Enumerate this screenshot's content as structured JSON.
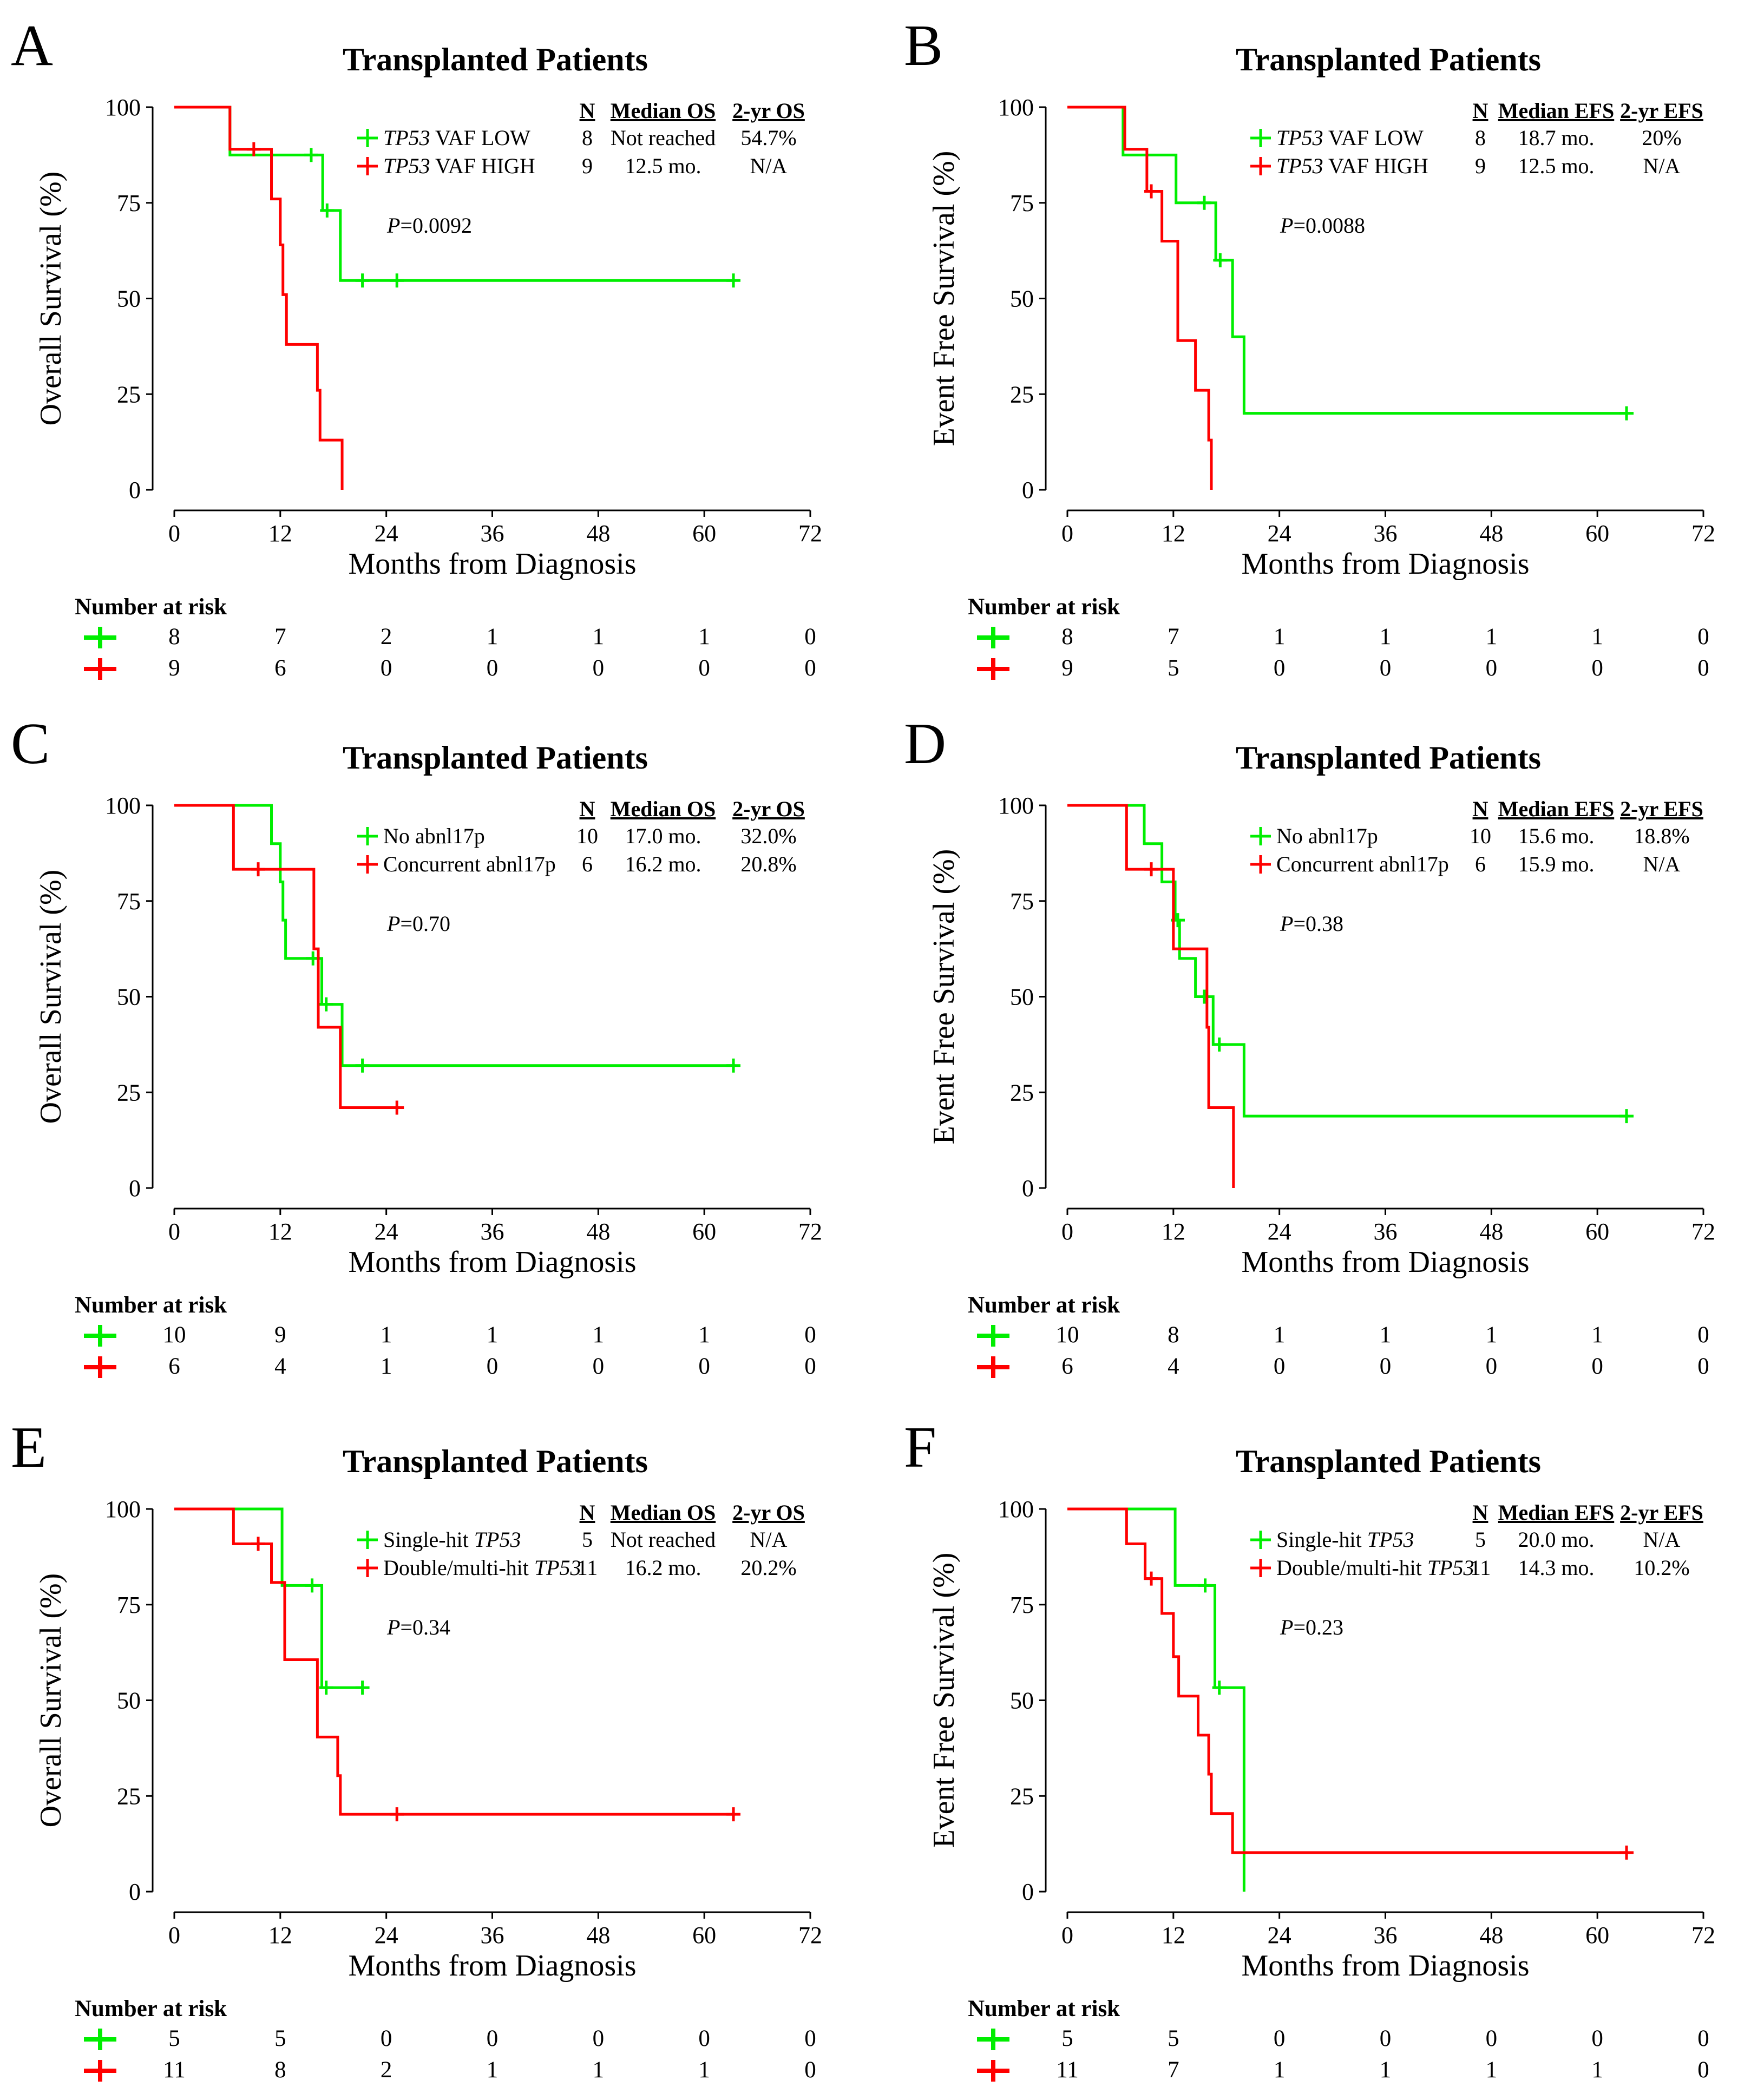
{
  "figure": {
    "number_at_risk_label": "Number at risk",
    "p_prefix": "P",
    "colors": {
      "green": "#00ee00",
      "red": "#ff0000"
    }
  },
  "chart_data": [
    {
      "panel": "A",
      "type": "line",
      "title": "Transplanted Patients",
      "xlabel": "Months from Diagnosis",
      "ylabel": "Overall Survival (%)",
      "xlim": [
        0,
        72
      ],
      "ylim": [
        0,
        100
      ],
      "xticks": [
        0,
        12,
        24,
        36,
        48,
        60,
        72
      ],
      "yticks": [
        0,
        25,
        50,
        75,
        100
      ],
      "table_headers": [
        "N",
        "Median OS",
        "2-yr OS"
      ],
      "p_value": "=0.0092",
      "series": [
        {
          "name": "TP53 VAF LOW",
          "name_italic": "TP53",
          "name_rest": " VAF LOW",
          "color": "green",
          "stats": [
            "8",
            "Not reached",
            "54.7%"
          ],
          "steps": [
            [
              0,
              100
            ],
            [
              6.3,
              87.5
            ],
            [
              16.8,
              73
            ],
            [
              18.8,
              54.7
            ],
            [
              63.5,
              54.7
            ]
          ],
          "censored": [
            [
              15.5,
              87.5
            ],
            [
              17.3,
              73
            ],
            [
              21.3,
              54.7
            ],
            [
              25.2,
              54.7
            ],
            [
              63.3,
              54.7
            ]
          ],
          "risk": [
            8,
            7,
            2,
            1,
            1,
            1,
            0
          ]
        },
        {
          "name": "TP53 VAF HIGH",
          "name_italic": "TP53",
          "name_rest": " VAF HIGH",
          "color": "red",
          "stats": [
            "9",
            "12.5 mo.",
            "N/A"
          ],
          "steps": [
            [
              0,
              100
            ],
            [
              6.3,
              89
            ],
            [
              11,
              76
            ],
            [
              12,
              64
            ],
            [
              12.3,
              51
            ],
            [
              12.7,
              38
            ],
            [
              16.2,
              26
            ],
            [
              16.5,
              13
            ],
            [
              19,
              0
            ]
          ],
          "censored": [
            [
              9,
              89
            ]
          ],
          "risk": [
            9,
            6,
            0,
            0,
            0,
            0,
            0
          ]
        }
      ]
    },
    {
      "panel": "B",
      "type": "line",
      "title": "Transplanted Patients",
      "xlabel": "Months from Diagnosis",
      "ylabel": "Event Free Survival (%)",
      "xlim": [
        0,
        72
      ],
      "ylim": [
        0,
        100
      ],
      "xticks": [
        0,
        12,
        24,
        36,
        48,
        60,
        72
      ],
      "yticks": [
        0,
        25,
        50,
        75,
        100
      ],
      "table_headers": [
        "N",
        "Median EFS",
        "2-yr EFS"
      ],
      "p_value": "=0.0088",
      "series": [
        {
          "name": "TP53 VAF LOW",
          "name_italic": "TP53",
          "name_rest": " VAF LOW",
          "color": "green",
          "stats": [
            "8",
            "18.7 mo.",
            "20%"
          ],
          "steps": [
            [
              0,
              100
            ],
            [
              6.3,
              87.5
            ],
            [
              12.3,
              75
            ],
            [
              16.8,
              60
            ],
            [
              18.7,
              40
            ],
            [
              20,
              20
            ],
            [
              63.5,
              20
            ]
          ],
          "censored": [
            [
              15.5,
              75
            ],
            [
              17.3,
              60
            ],
            [
              63.3,
              20
            ]
          ],
          "risk": [
            8,
            7,
            1,
            1,
            1,
            1,
            0
          ]
        },
        {
          "name": "TP53 VAF HIGH",
          "name_italic": "TP53",
          "name_rest": " VAF HIGH",
          "color": "red",
          "stats": [
            "9",
            "12.5 mo.",
            "N/A"
          ],
          "steps": [
            [
              0,
              100
            ],
            [
              6.5,
              89
            ],
            [
              9,
              78
            ],
            [
              10.7,
              65
            ],
            [
              12.5,
              39
            ],
            [
              14.5,
              26
            ],
            [
              16,
              13
            ],
            [
              16.3,
              0
            ]
          ],
          "censored": [
            [
              9.5,
              78
            ]
          ],
          "risk": [
            9,
            5,
            0,
            0,
            0,
            0,
            0
          ]
        }
      ]
    },
    {
      "panel": "C",
      "type": "line",
      "title": "Transplanted Patients",
      "xlabel": "Months from Diagnosis",
      "ylabel": "Overall Survival (%)",
      "xlim": [
        0,
        72
      ],
      "ylim": [
        0,
        100
      ],
      "xticks": [
        0,
        12,
        24,
        36,
        48,
        60,
        72
      ],
      "yticks": [
        0,
        25,
        50,
        75,
        100
      ],
      "table_headers": [
        "N",
        "Median OS",
        "2-yr OS"
      ],
      "p_value": "=0.70",
      "series": [
        {
          "name": "No abnl17p",
          "color": "green",
          "stats": [
            "10",
            "17.0 mo.",
            "32.0%"
          ],
          "steps": [
            [
              0,
              100
            ],
            [
              11,
              90
            ],
            [
              12,
              80
            ],
            [
              12.3,
              70
            ],
            [
              12.6,
              60
            ],
            [
              16.7,
              48
            ],
            [
              19,
              32
            ],
            [
              63.5,
              32
            ]
          ],
          "censored": [
            [
              15.7,
              60
            ],
            [
              17.2,
              48
            ],
            [
              21.3,
              32
            ],
            [
              63.3,
              32
            ]
          ],
          "risk": [
            10,
            9,
            1,
            1,
            1,
            1,
            0
          ]
        },
        {
          "name": "Concurrent abnl17p",
          "color": "red",
          "stats": [
            "6",
            "16.2 mo.",
            "20.8%"
          ],
          "steps": [
            [
              0,
              100
            ],
            [
              6.7,
              83.3
            ],
            [
              15.8,
              62.5
            ],
            [
              16.3,
              42
            ],
            [
              18.8,
              21
            ],
            [
              25.5,
              21
            ]
          ],
          "censored": [
            [
              9.5,
              83.3
            ],
            [
              25.2,
              21
            ]
          ],
          "risk": [
            6,
            4,
            1,
            0,
            0,
            0,
            0
          ]
        }
      ]
    },
    {
      "panel": "D",
      "type": "line",
      "title": "Transplanted Patients",
      "xlabel": "Months from Diagnosis",
      "ylabel": "Event Free Survival (%)",
      "xlim": [
        0,
        72
      ],
      "ylim": [
        0,
        100
      ],
      "xticks": [
        0,
        12,
        24,
        36,
        48,
        60,
        72
      ],
      "yticks": [
        0,
        25,
        50,
        75,
        100
      ],
      "table_headers": [
        "N",
        "Median EFS",
        "2-yr EFS"
      ],
      "p_value": "=0.38",
      "series": [
        {
          "name": "No abnl17p",
          "color": "green",
          "stats": [
            "10",
            "15.6 mo.",
            "18.8%"
          ],
          "steps": [
            [
              0,
              100
            ],
            [
              8.7,
              90
            ],
            [
              10.7,
              80
            ],
            [
              12.2,
              70
            ],
            [
              12.7,
              60
            ],
            [
              14.5,
              50
            ],
            [
              16.5,
              37.5
            ],
            [
              20,
              18.8
            ],
            [
              63.5,
              18.8
            ]
          ],
          "censored": [
            [
              12.5,
              70
            ],
            [
              15.5,
              50
            ],
            [
              17.2,
              37.5
            ],
            [
              63.3,
              18.8
            ]
          ],
          "risk": [
            10,
            8,
            1,
            1,
            1,
            1,
            0
          ]
        },
        {
          "name": "Concurrent abnl17p",
          "color": "red",
          "stats": [
            "6",
            "15.9 mo.",
            "N/A"
          ],
          "steps": [
            [
              0,
              100
            ],
            [
              6.7,
              83.3
            ],
            [
              12,
              62.5
            ],
            [
              15.8,
              42
            ],
            [
              16,
              21
            ],
            [
              18.8,
              0
            ]
          ],
          "censored": [
            [
              9.5,
              83.3
            ]
          ],
          "risk": [
            6,
            4,
            0,
            0,
            0,
            0,
            0
          ]
        }
      ]
    },
    {
      "panel": "E",
      "type": "line",
      "title": "Transplanted Patients",
      "xlabel": "Months from Diagnosis",
      "ylabel": "Overall Survival (%)",
      "xlim": [
        0,
        72
      ],
      "ylim": [
        0,
        100
      ],
      "xticks": [
        0,
        12,
        24,
        36,
        48,
        60,
        72
      ],
      "yticks": [
        0,
        25,
        50,
        75,
        100
      ],
      "table_headers": [
        "N",
        "Median OS",
        "2-yr OS"
      ],
      "p_value": "=0.34",
      "series": [
        {
          "name": "Single-hit TP53",
          "name_rest": "Single-hit ",
          "name_italic": "TP53",
          "italic_after": true,
          "color": "green",
          "stats": [
            "5",
            "Not reached",
            "N/A"
          ],
          "steps": [
            [
              0,
              100
            ],
            [
              12.2,
              80
            ],
            [
              16.7,
              53.3
            ],
            [
              21.5,
              53.3
            ]
          ],
          "censored": [
            [
              15.6,
              80
            ],
            [
              17.2,
              53.3
            ],
            [
              21.3,
              53.3
            ]
          ],
          "risk": [
            5,
            5,
            0,
            0,
            0,
            0,
            0
          ]
        },
        {
          "name": "Double/multi-hit TP53",
          "name_rest": "Double/multi-hit ",
          "name_italic": "TP53",
          "italic_after": true,
          "color": "red",
          "stats": [
            "11",
            "16.2 mo.",
            "20.2%"
          ],
          "steps": [
            [
              0,
              100
            ],
            [
              6.7,
              90.9
            ],
            [
              11,
              80.8
            ],
            [
              12.5,
              60.6
            ],
            [
              16.2,
              40.4
            ],
            [
              18.5,
              30.3
            ],
            [
              18.8,
              20.2
            ],
            [
              63.5,
              20.2
            ]
          ],
          "censored": [
            [
              9.5,
              90.9
            ],
            [
              25.2,
              20.2
            ],
            [
              63.3,
              20.2
            ]
          ],
          "risk": [
            11,
            8,
            2,
            1,
            1,
            1,
            0
          ]
        }
      ]
    },
    {
      "panel": "F",
      "type": "line",
      "title": "Transplanted Patients",
      "xlabel": "Months from Diagnosis",
      "ylabel": "Event Free Survival (%)",
      "xlim": [
        0,
        72
      ],
      "ylim": [
        0,
        100
      ],
      "xticks": [
        0,
        12,
        24,
        36,
        48,
        60,
        72
      ],
      "yticks": [
        0,
        25,
        50,
        75,
        100
      ],
      "table_headers": [
        "N",
        "Median EFS",
        "2-yr EFS"
      ],
      "p_value": "=0.23",
      "series": [
        {
          "name": "Single-hit TP53",
          "name_rest": "Single-hit ",
          "name_italic": "TP53",
          "italic_after": true,
          "color": "green",
          "stats": [
            "5",
            "20.0 mo.",
            "N/A"
          ],
          "steps": [
            [
              0,
              100
            ],
            [
              12.2,
              80
            ],
            [
              16.7,
              53.3
            ],
            [
              20,
              0
            ]
          ],
          "censored": [
            [
              15.6,
              80
            ],
            [
              17.2,
              53.3
            ]
          ],
          "risk": [
            5,
            5,
            0,
            0,
            0,
            0,
            0
          ]
        },
        {
          "name": "Double/multi-hit TP53",
          "name_rest": "Double/multi-hit ",
          "name_italic": "TP53",
          "italic_after": true,
          "color": "red",
          "stats": [
            "11",
            "14.3 mo.",
            "10.2%"
          ],
          "steps": [
            [
              0,
              100
            ],
            [
              6.7,
              90.9
            ],
            [
              8.8,
              81.8
            ],
            [
              10.7,
              72.7
            ],
            [
              12,
              61.4
            ],
            [
              12.6,
              51.1
            ],
            [
              14.8,
              40.9
            ],
            [
              16,
              30.7
            ],
            [
              16.3,
              20.4
            ],
            [
              18.7,
              10.2
            ],
            [
              63.5,
              10.2
            ]
          ],
          "censored": [
            [
              9.5,
              81.8
            ],
            [
              63.3,
              10.2
            ]
          ],
          "risk": [
            11,
            7,
            1,
            1,
            1,
            1,
            0
          ]
        }
      ]
    }
  ]
}
